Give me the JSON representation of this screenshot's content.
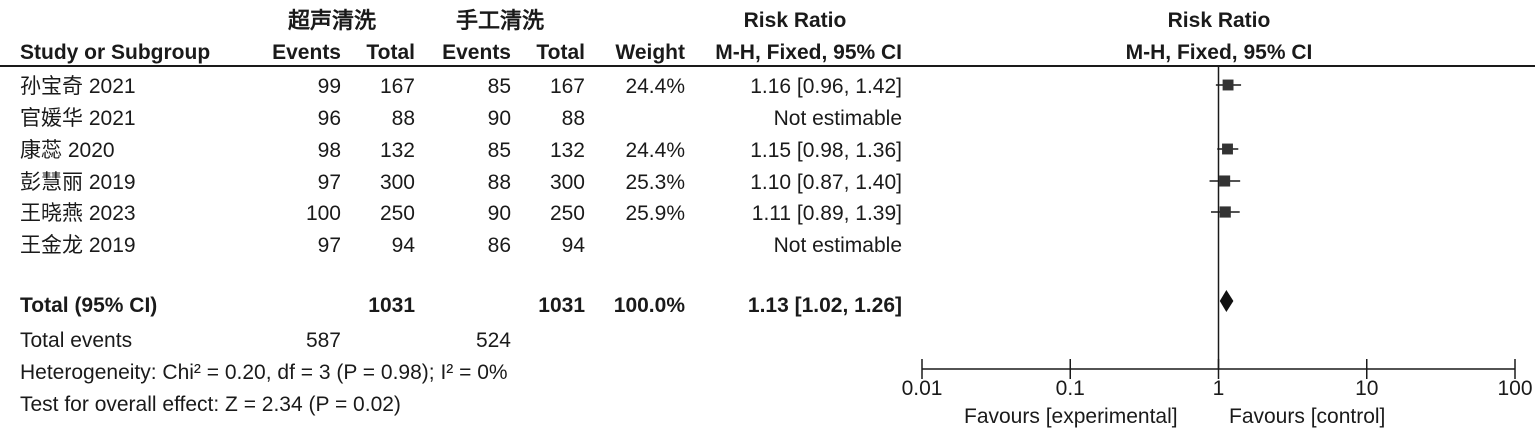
{
  "header": {
    "group_experimental": "超声清洗",
    "group_control": "手工清洗",
    "rr_title_left": "Risk Ratio",
    "rr_title_right": "Risk Ratio",
    "study_col": "Study or Subgroup",
    "events1": "Events",
    "total1": "Total",
    "events2": "Events",
    "total2": "Total",
    "weight": "Weight",
    "method_left": "M-H, Fixed, 95% CI",
    "method_right": "M-H, Fixed, 95% CI"
  },
  "studies": [
    {
      "name": "孙宝奇 2021",
      "events1": "99",
      "total1": "167",
      "events2": "85",
      "total2": "167",
      "weight": "24.4%",
      "ci_text": "1.16 [0.96, 1.42]"
    },
    {
      "name": "官媛华 2021",
      "events1": "96",
      "total1": "88",
      "events2": "90",
      "total2": "88",
      "weight": "",
      "ci_text": "Not estimable"
    },
    {
      "name": "康蕊 2020",
      "events1": "98",
      "total1": "132",
      "events2": "85",
      "total2": "132",
      "weight": "24.4%",
      "ci_text": "1.15 [0.98, 1.36]"
    },
    {
      "name": "彭慧丽 2019",
      "events1": "97",
      "total1": "300",
      "events2": "88",
      "total2": "300",
      "weight": "25.3%",
      "ci_text": "1.10 [0.87, 1.40]"
    },
    {
      "name": "王晓燕 2023",
      "events1": "100",
      "total1": "250",
      "events2": "90",
      "total2": "250",
      "weight": "25.9%",
      "ci_text": "1.11 [0.89, 1.39]"
    },
    {
      "name": "王金龙 2019",
      "events1": "97",
      "total1": "94",
      "events2": "86",
      "total2": "94",
      "weight": "",
      "ci_text": "Not estimable"
    }
  ],
  "total": {
    "label": "Total (95% CI)",
    "total1": "1031",
    "total2": "1031",
    "weight": "100.0%",
    "ci_text": "1.13 [1.02, 1.26]"
  },
  "total_events": {
    "label": "Total events",
    "events1": "587",
    "events2": "524"
  },
  "heterogeneity": "Heterogeneity: Chi² = 0.20, df = 3 (P = 0.98); I² = 0%",
  "overall_effect": "Test for overall effect: Z = 2.34 (P = 0.02)",
  "axis": {
    "favours_left": "Favours [experimental]",
    "favours_right": "Favours [control]"
  },
  "chart_data": {
    "type": "forest",
    "scale": "log",
    "xlim": [
      0.01,
      100
    ],
    "ticks": [
      0.01,
      0.1,
      1,
      10,
      100
    ],
    "tick_labels": [
      "0.01",
      "0.1",
      "1",
      "10",
      "100"
    ],
    "null_line": 1,
    "studies": [
      {
        "name": "孙宝奇 2021",
        "rr": 1.16,
        "lower": 0.96,
        "upper": 1.42,
        "weight": 24.4
      },
      {
        "name": "官媛华 2021",
        "rr": null,
        "lower": null,
        "upper": null,
        "weight": null
      },
      {
        "name": "康蕊 2020",
        "rr": 1.15,
        "lower": 0.98,
        "upper": 1.36,
        "weight": 24.4
      },
      {
        "name": "彭慧丽 2019",
        "rr": 1.1,
        "lower": 0.87,
        "upper": 1.4,
        "weight": 25.3
      },
      {
        "name": "王晓燕 2023",
        "rr": 1.11,
        "lower": 0.89,
        "upper": 1.39,
        "weight": 25.9
      },
      {
        "name": "王金龙 2019",
        "rr": null,
        "lower": null,
        "upper": null,
        "weight": null
      }
    ],
    "pooled": {
      "rr": 1.13,
      "lower": 1.02,
      "upper": 1.26
    },
    "xlabel_left": "Favours [experimental]",
    "xlabel_right": "Favours [control]",
    "colors": {
      "marker": "#333333",
      "line": "#1a1a1a"
    }
  }
}
